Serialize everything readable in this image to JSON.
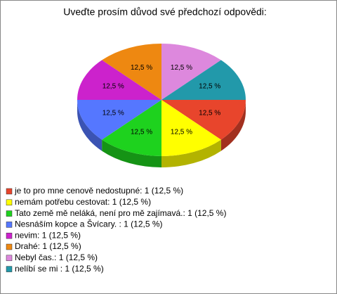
{
  "chart_data": {
    "type": "pie",
    "title": "Uveďte prosím důvod své předchozí odpovědi:",
    "categories": [
      "je to pro mne cenově nedostupné: 1 (12,5 %)",
      "nemám potřebu cestovat: 1 (12,5 %)",
      "Tato země mě neláká, není pro mě zajímavá.: 1 (12,5 %)",
      "Nesnáším kopce a Švícary. : 1 (12,5 %)",
      "nevim: 1 (12,5 %)",
      "Drahé: 1 (12,5 %)",
      "Nebyl čas.: 1 (12,5 %)",
      "nelíbí se mi : 1 (12,5 %)"
    ],
    "values": [
      12.5,
      12.5,
      12.5,
      12.5,
      12.5,
      12.5,
      12.5,
      12.5
    ],
    "value_labels": [
      "12,5 %",
      "12,5 %",
      "12,5 %",
      "12,5 %",
      "12,5 %",
      "12,5 %",
      "12,5 %",
      "12,5 %"
    ],
    "colors": [
      "#e8452c",
      "#ffff00",
      "#1ed21e",
      "#5577ff",
      "#cc22cc",
      "#ee8811",
      "#dd88dd",
      "#2299aa"
    ]
  }
}
